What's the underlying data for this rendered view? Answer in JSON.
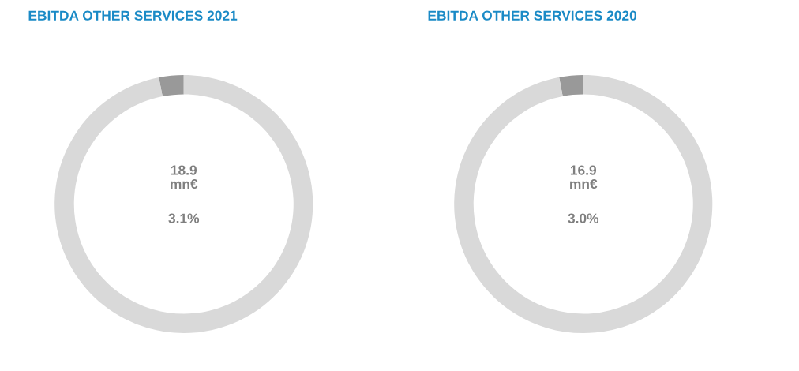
{
  "chart_data": [
    {
      "type": "donut",
      "title": "EBITDA OTHER SERVICES 2021",
      "categories": [
        null,
        null
      ],
      "values": [
        3.1,
        96.9
      ],
      "colors": [
        "#999999",
        "#d9d9d9"
      ],
      "annotations": [
        "18.9\nmn€",
        "3.1%"
      ]
    },
    {
      "type": "donut",
      "title": "EBITDA OTHER SERVICES 2020",
      "categories": [
        null,
        null
      ],
      "values": [
        3.0,
        97.0
      ],
      "colors": [
        "#999999",
        "#d9d9d9"
      ],
      "annotations": [
        "16.9\nmn€",
        "3.0%"
      ]
    }
  ]
}
